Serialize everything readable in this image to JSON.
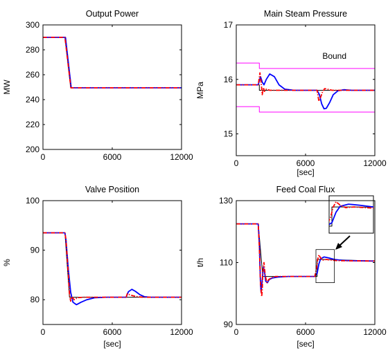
{
  "chart_data": [
    {
      "type": "line",
      "title": "Output Power",
      "xlabel": "",
      "ylabel": "MW",
      "xlim": [
        0,
        12000
      ],
      "ylim": [
        200,
        300
      ],
      "xticks": [
        0,
        6000,
        12000
      ],
      "yticks": [
        200,
        220,
        240,
        260,
        280,
        300
      ],
      "series": [
        {
          "color": "#000000",
          "style": "solid",
          "x": [
            0,
            1900,
            2400,
            12000
          ],
          "y": [
            290,
            290,
            249.5,
            249.5
          ]
        },
        {
          "color": "#0000ff",
          "style": "solid",
          "x": [
            0,
            1950,
            2450,
            12000
          ],
          "y": [
            290,
            290,
            249.5,
            249.5
          ]
        },
        {
          "color": "#ff0000",
          "style": "dashdot",
          "x": [
            0,
            1900,
            2420,
            12000
          ],
          "y": [
            290,
            290,
            249.5,
            249.5
          ]
        }
      ]
    },
    {
      "type": "line",
      "title": "Main Steam Pressure",
      "xlabel": "[sec]",
      "ylabel": "MPa",
      "xlim": [
        0,
        12000
      ],
      "ylim": [
        14.6,
        17
      ],
      "xticks": [
        0,
        6000,
        12000
      ],
      "yticks": [
        15,
        16,
        17
      ],
      "annotations": [
        {
          "text": "Bound",
          "x": 8500,
          "y": 16.3
        }
      ],
      "series": [
        {
          "color": "#ff00ff",
          "style": "solid",
          "x": [
            0,
            2000,
            2000,
            12000
          ],
          "y": [
            16.3,
            16.3,
            16.2,
            16.2
          ]
        },
        {
          "color": "#ff00ff",
          "style": "solid",
          "x": [
            0,
            2000,
            2000,
            12000
          ],
          "y": [
            15.5,
            15.5,
            15.4,
            15.4
          ]
        },
        {
          "color": "#000000",
          "style": "solid",
          "x": [
            0,
            2000,
            2000,
            7200,
            7200,
            12000
          ],
          "y": [
            15.9,
            15.9,
            15.8,
            15.8,
            15.8,
            15.8
          ]
        },
        {
          "color": "#0000ff",
          "style": "solid",
          "x": [
            0,
            1900,
            2100,
            2250,
            2400,
            2600,
            2900,
            3300,
            3700,
            4200,
            5000,
            7000,
            7200,
            7400,
            7600,
            7800,
            8100,
            8400,
            8800,
            9300,
            10000,
            12000
          ],
          "y": [
            15.9,
            15.9,
            16.05,
            15.95,
            15.9,
            16.0,
            16.1,
            16.05,
            15.9,
            15.82,
            15.8,
            15.8,
            15.72,
            15.55,
            15.46,
            15.47,
            15.58,
            15.72,
            15.79,
            15.81,
            15.8,
            15.8
          ]
        },
        {
          "color": "#ff0000",
          "style": "dashdot",
          "x": [
            0,
            1900,
            2050,
            2150,
            2250,
            2350,
            2450,
            2600,
            2900,
            3400,
            5000,
            7000,
            7150,
            7300,
            7450,
            7650,
            7900,
            8300,
            9000,
            12000
          ],
          "y": [
            15.9,
            15.9,
            16.12,
            15.95,
            15.72,
            15.85,
            15.78,
            15.82,
            15.8,
            15.8,
            15.8,
            15.8,
            15.6,
            15.67,
            15.76,
            15.83,
            15.82,
            15.8,
            15.8,
            15.8
          ]
        }
      ]
    },
    {
      "type": "line",
      "title": "Valve Position",
      "xlabel": "[sec]",
      "ylabel": "%",
      "xlim": [
        0,
        12000
      ],
      "ylim": [
        75,
        100
      ],
      "xticks": [
        0,
        6000,
        12000
      ],
      "yticks": [
        80,
        90,
        100
      ],
      "series": [
        {
          "color": "#000000",
          "style": "solid",
          "x": [
            0,
            1900,
            2300,
            2500,
            12000
          ],
          "y": [
            93.5,
            93.5,
            80.5,
            80.5,
            80.5
          ]
        },
        {
          "color": "#0000ff",
          "style": "solid",
          "x": [
            0,
            1900,
            2000,
            2200,
            2400,
            2600,
            2900,
            3300,
            3800,
            4500,
            5500,
            7200,
            7400,
            7700,
            8000,
            8400,
            8800,
            9300,
            12000
          ],
          "y": [
            93.5,
            93.5,
            92.0,
            86.0,
            81.5,
            79.5,
            79.0,
            79.5,
            80.0,
            80.4,
            80.5,
            80.5,
            81.6,
            82.1,
            81.7,
            81.0,
            80.6,
            80.5,
            80.5
          ]
        },
        {
          "color": "#ff0000",
          "style": "dashdot",
          "x": [
            0,
            1900,
            2000,
            2200,
            2300,
            2400,
            2500,
            2700,
            3000,
            3500,
            4500,
            7200,
            7300,
            7500,
            7800,
            8200,
            8700,
            12000
          ],
          "y": [
            93.5,
            93.5,
            92.0,
            85.0,
            81.0,
            79.7,
            80.6,
            80.0,
            80.4,
            80.5,
            80.5,
            80.5,
            81.2,
            81.0,
            80.8,
            80.6,
            80.5,
            80.5
          ]
        }
      ]
    },
    {
      "type": "line",
      "title": "Feed Coal Flux",
      "xlabel": "[sec]",
      "ylabel": "t/h",
      "xlim": [
        0,
        12000
      ],
      "ylim": [
        90,
        130
      ],
      "xticks": [
        0,
        6000,
        12000
      ],
      "yticks": [
        90,
        110,
        130
      ],
      "zoom_box": {
        "x": [
          6900,
          8500
        ],
        "y": [
          103.5,
          114.2
        ]
      },
      "series": [
        {
          "color": "#000000",
          "style": "solid",
          "x": [
            0,
            1900,
            2300,
            3000,
            7000,
            7000,
            7800,
            12000
          ],
          "y": [
            122.5,
            122.5,
            105.5,
            105.5,
            105.5,
            111.0,
            111.0,
            110.5
          ]
        },
        {
          "color": "#0000ff",
          "style": "solid",
          "x": [
            0,
            1900,
            2000,
            2100,
            2150,
            2250,
            2350,
            2450,
            2550,
            2700,
            2850,
            3100,
            3600,
            4500,
            6800,
            7000,
            7150,
            7300,
            7600,
            8000,
            8500,
            9200,
            10000,
            12000
          ],
          "y": [
            122.5,
            122.5,
            116.0,
            103.0,
            100.5,
            104.5,
            108.5,
            107.0,
            104.0,
            103.5,
            104.5,
            105.0,
            105.3,
            105.5,
            105.5,
            106.5,
            109.5,
            111.2,
            111.8,
            111.5,
            111.0,
            110.7,
            110.6,
            110.5
          ]
        },
        {
          "color": "#ff0000",
          "style": "dashdot",
          "x": [
            0,
            1900,
            2000,
            2100,
            2200,
            2250,
            2300,
            2400,
            2500,
            2650,
            2800,
            3000,
            3400,
            4200,
            6800,
            6950,
            7050,
            7150,
            7300,
            7500,
            7800,
            8200,
            8800,
            12000
          ],
          "y": [
            122.5,
            122.5,
            115.0,
            103.0,
            99.0,
            101.0,
            107.0,
            110.0,
            106.0,
            103.5,
            104.5,
            105.0,
            105.5,
            105.5,
            105.5,
            108.0,
            111.0,
            112.5,
            111.5,
            110.8,
            111.0,
            110.8,
            110.6,
            110.5
          ]
        }
      ]
    }
  ]
}
